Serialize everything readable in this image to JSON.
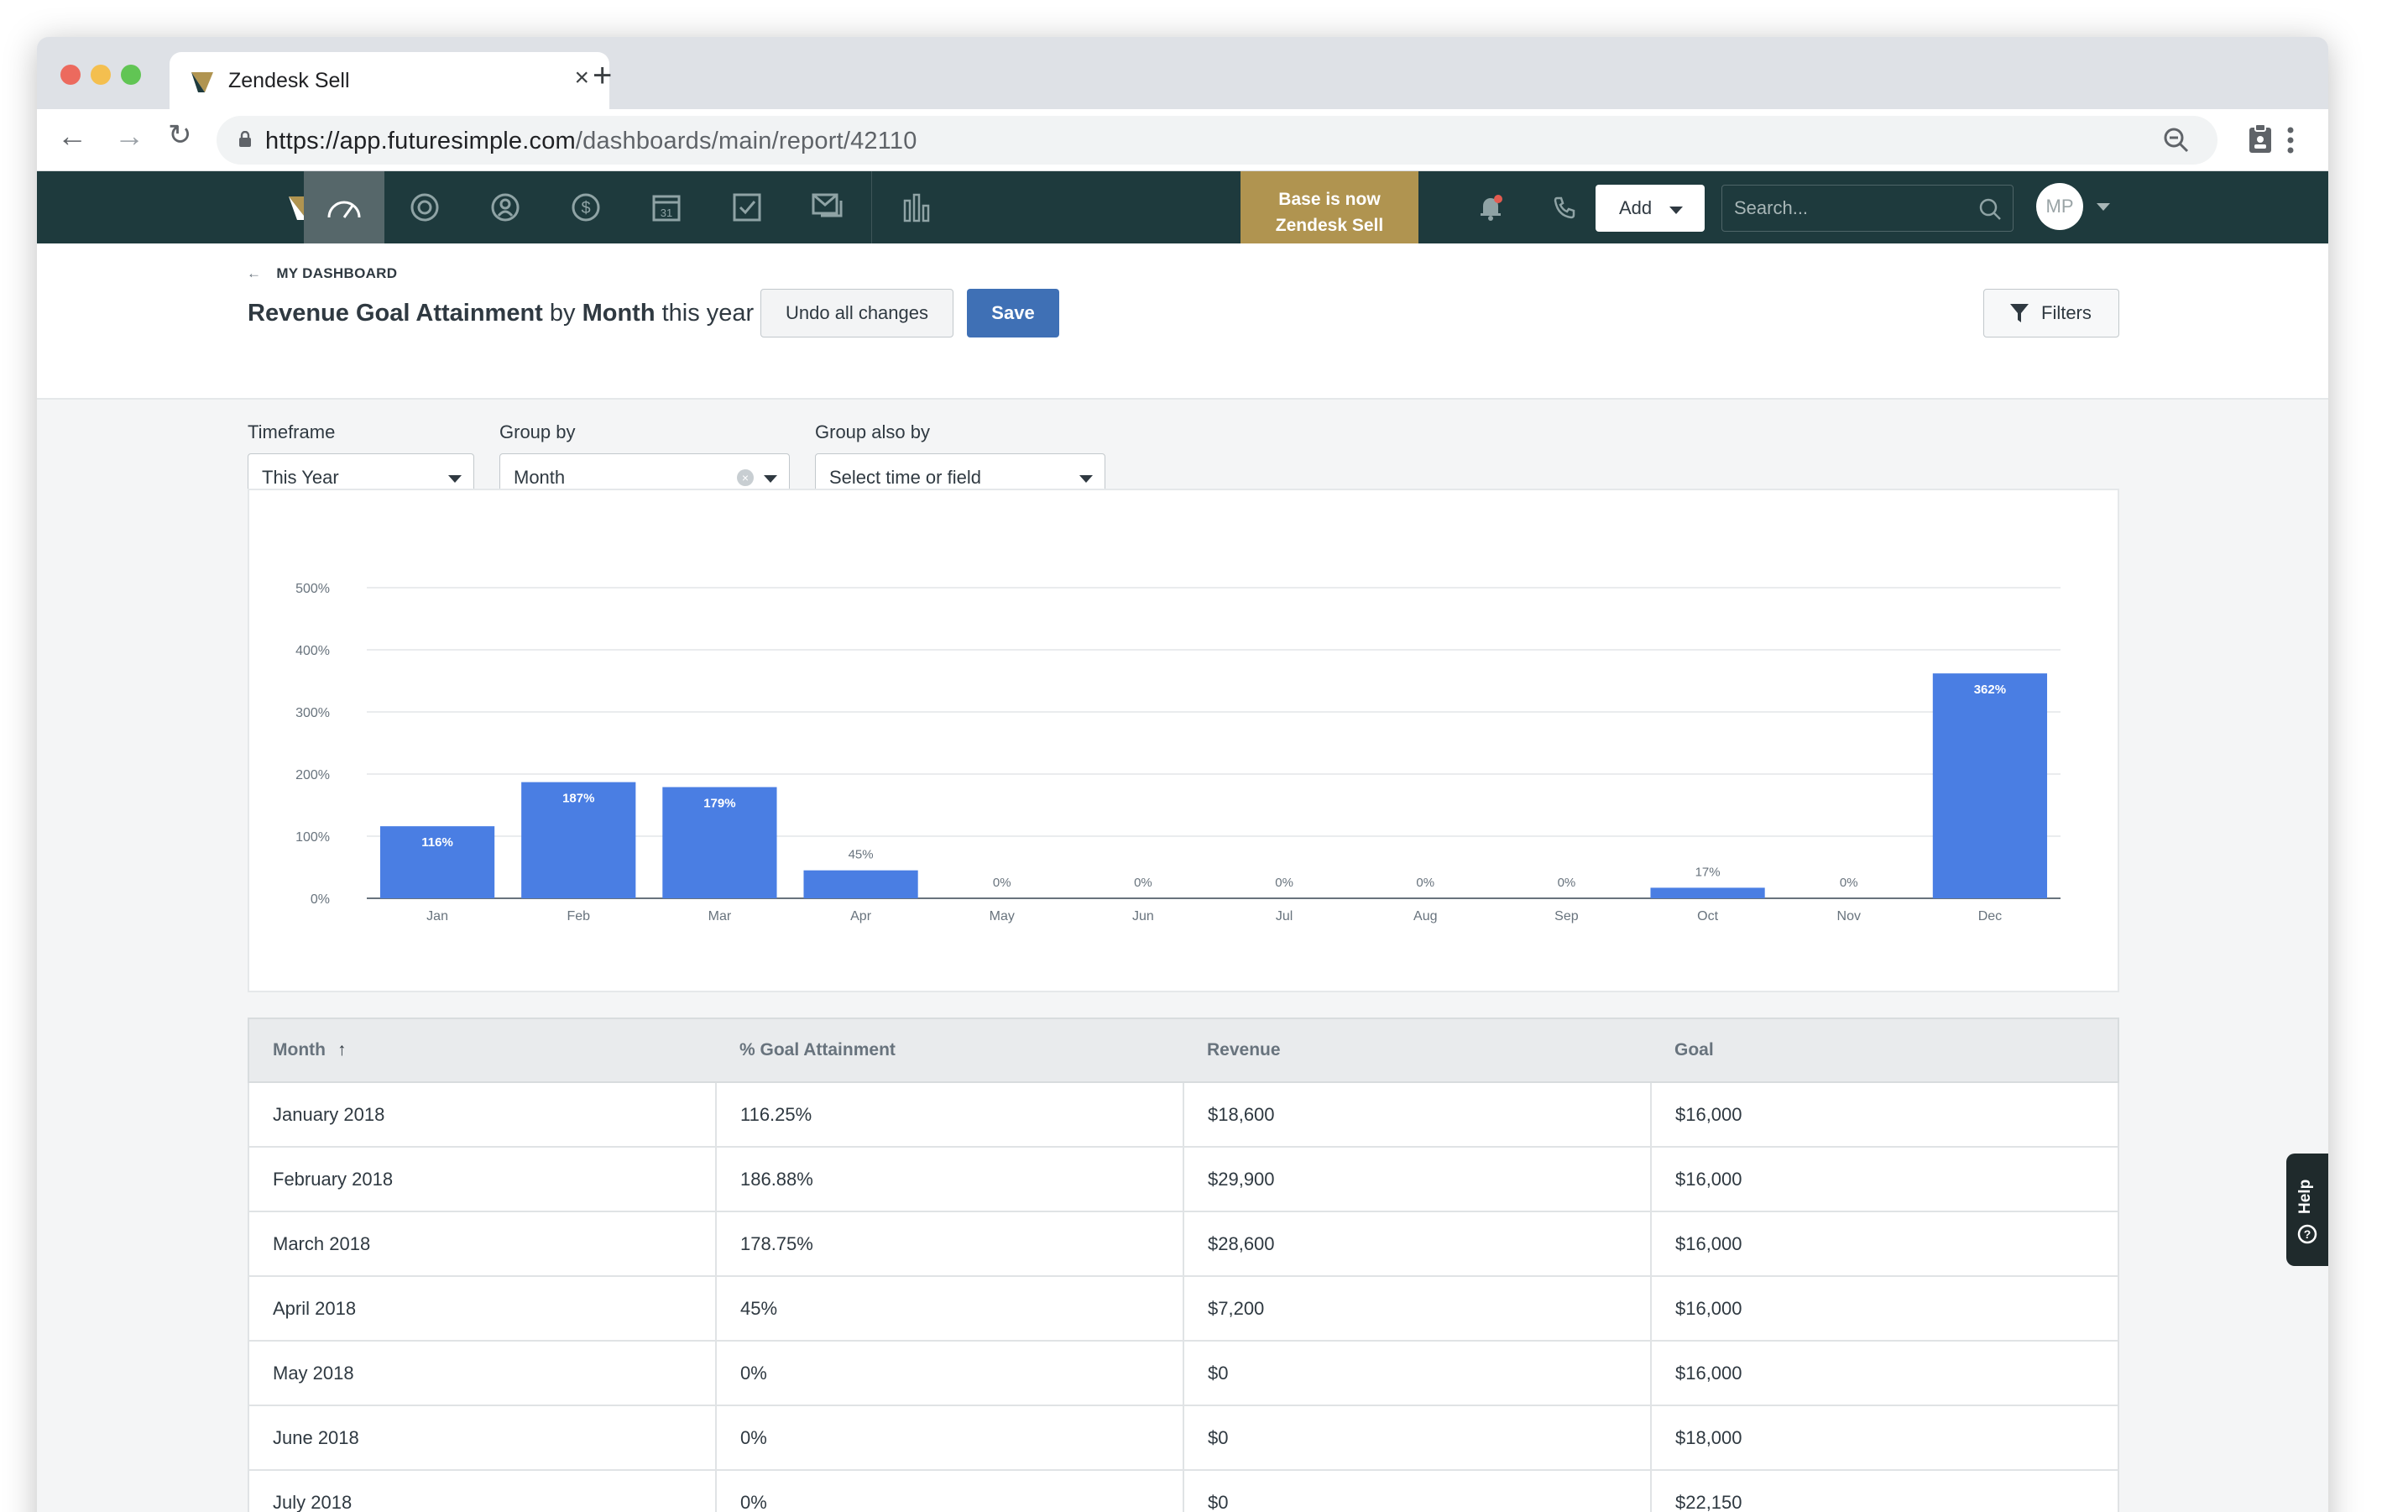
{
  "browser": {
    "tab_title": "Zendesk Sell",
    "url_host": "https://app.futuresimple.com",
    "url_path": "/dashboards/main/report/42110"
  },
  "appnav": {
    "banner_line1": "Base is now",
    "banner_line2": "Zendesk Sell",
    "add_label": "Add",
    "search_placeholder": "Search...",
    "avatar_initials": "MP"
  },
  "header": {
    "back_label": "MY DASHBOARD",
    "title_part1": "Revenue Goal Attainment",
    "title_part2": " by ",
    "title_part3": "Month",
    "title_part4": " this year",
    "undo_label": "Undo all changes",
    "save_label": "Save",
    "filters_label": "Filters"
  },
  "controls": {
    "timeframe_label": "Timeframe",
    "timeframe_value": "This Year",
    "groupby_label": "Group by",
    "groupby_value": "Month",
    "groupalso_label": "Group also by",
    "groupalso_value": "Select time or field"
  },
  "chart_data": {
    "type": "bar",
    "categories": [
      "Jan",
      "Feb",
      "Mar",
      "Apr",
      "May",
      "Jun",
      "Jul",
      "Aug",
      "Sep",
      "Oct",
      "Nov",
      "Dec"
    ],
    "values": [
      116,
      187,
      179,
      45,
      0,
      0,
      0,
      0,
      0,
      17,
      0,
      362
    ],
    "labels": [
      "116%",
      "187%",
      "179%",
      "45%",
      "0%",
      "0%",
      "0%",
      "0%",
      "0%",
      "17%",
      "0%",
      "362%"
    ],
    "y_ticks": [
      "0%",
      "100%",
      "200%",
      "300%",
      "400%",
      "500%"
    ],
    "ylim": [
      0,
      500
    ],
    "grid": true,
    "bar_color": "#4a7ee3"
  },
  "table": {
    "columns": [
      "Month",
      "% Goal Attainment",
      "Revenue",
      "Goal"
    ],
    "sort_indicator": "↑",
    "rows": [
      [
        "January 2018",
        "116.25%",
        "$18,600",
        "$16,000"
      ],
      [
        "February 2018",
        "186.88%",
        "$29,900",
        "$16,000"
      ],
      [
        "March 2018",
        "178.75%",
        "$28,600",
        "$16,000"
      ],
      [
        "April 2018",
        "45%",
        "$7,200",
        "$16,000"
      ],
      [
        "May 2018",
        "0%",
        "$0",
        "$16,000"
      ],
      [
        "June 2018",
        "0%",
        "$0",
        "$18,000"
      ],
      [
        "July 2018",
        "0%",
        "$0",
        "$22,150"
      ]
    ]
  },
  "help_label": "Help"
}
